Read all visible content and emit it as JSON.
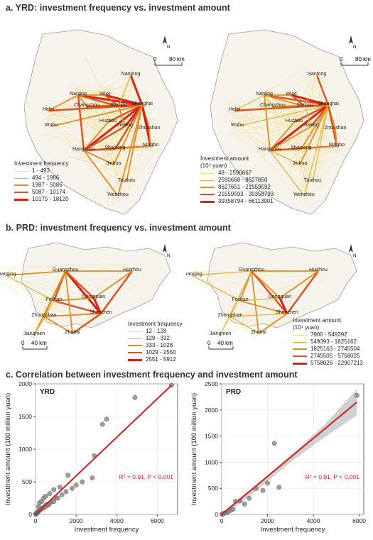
{
  "sections": {
    "a_title": "a. YRD: investment frequency vs. investment amount",
    "b_title": "b. PRD: investment frequency vs. investment amount",
    "c_title": "c. Correlation between investment frequency and investment amount"
  },
  "yrd": {
    "cities": [
      "Nantong",
      "Nanjing",
      "Wuxi",
      "Changzhou",
      "Suzhou",
      "Shanghai",
      "Hefei",
      "Huzhou",
      "Jiaxing",
      "Zhoushan",
      "Wuhu",
      "Hangzhou",
      "Shaoxing",
      "Ningbo",
      "Jinhua",
      "Taizhou",
      "Wenzhou"
    ],
    "scale": {
      "zero": "0",
      "max": "80 km"
    },
    "north": "N",
    "freq_legend": {
      "title": "Investment frequency",
      "classes": [
        "1 - 493",
        "494 - 1986",
        "1987 - 5086",
        "5087 - 10174",
        "10175 - 18120"
      ]
    },
    "amount_legend": {
      "title": "Investment amount",
      "unit": "(10⁴ yuan)",
      "classes": [
        "48 - 2590667",
        "2590668 - 8627650",
        "8627651 - 21559592",
        "21559593 - 39358793",
        "39358794 - 66113901"
      ]
    }
  },
  "prd": {
    "cities": [
      "Zhaoqing",
      "Guangzhou",
      "Huizhou",
      "Foshan",
      "Dongguan",
      "Zhongshan",
      "Shenzhen",
      "Jiangmen",
      "Zhuhai"
    ],
    "scale": {
      "zero": "0",
      "max": "40 km"
    },
    "north": "N",
    "freq_legend": {
      "title": "Investment frequency",
      "classes": [
        "12 - 128",
        "129 - 332",
        "333 - 1028",
        "1029 - 2550",
        "2551 - 5912"
      ]
    },
    "amount_legend": {
      "title": "Investment amount",
      "unit": "(10⁴ yuan)",
      "classes": [
        "7900 - 549392",
        "549393 - 1825162",
        "1825163 - 2745504",
        "2745505 - 5758025",
        "5758026 - 22907213"
      ]
    }
  },
  "colors": {
    "class1": "#f3dc8a",
    "class2": "#ddb12e",
    "class3": "#e08b23",
    "class4": "#e0501f",
    "class5": "#d62318",
    "fit_line": "#d21f1f",
    "point": "#8c8c8c",
    "ci_band": "#bdbdbd",
    "annotation": "#d21f1f"
  },
  "chart_data": [
    {
      "type": "scatter",
      "title": "YRD",
      "xlabel": "Investment frequency",
      "ylabel": "Investment amount (100 million yuan)",
      "xlim": [
        0,
        7000
      ],
      "ylim": [
        0,
        2000
      ],
      "xticks": [
        0,
        2000,
        4000,
        6000
      ],
      "yticks": [
        0,
        500,
        1000,
        1500,
        2000
      ],
      "grid": true,
      "annotation": "R² = 0.91, P < 0.001",
      "fit": {
        "x": [
          0,
          6700
        ],
        "y": [
          0,
          1980
        ]
      },
      "points": {
        "x": [
          10,
          20,
          30,
          40,
          50,
          60,
          80,
          100,
          120,
          150,
          180,
          200,
          220,
          250,
          280,
          300,
          350,
          400,
          450,
          500,
          550,
          600,
          650,
          700,
          800,
          900,
          1000,
          1100,
          1300,
          1500,
          1800,
          2000,
          2300,
          2800,
          2900,
          3300,
          3500,
          4900,
          6700,
          150,
          200,
          300,
          400,
          500,
          700,
          900,
          1200,
          1600
        ],
        "y": [
          5,
          8,
          10,
          15,
          20,
          25,
          30,
          30,
          40,
          50,
          60,
          60,
          70,
          80,
          80,
          90,
          100,
          100,
          120,
          140,
          130,
          160,
          150,
          170,
          200,
          200,
          260,
          250,
          300,
          350,
          400,
          450,
          500,
          560,
          900,
          1380,
          1460,
          1790,
          1980,
          120,
          180,
          200,
          250,
          280,
          320,
          380,
          420,
          600
        ]
      }
    },
    {
      "type": "scatter",
      "title": "PRD",
      "xlabel": "Investment frequency",
      "ylabel": "Investment amount (100 million yuan)",
      "xlim": [
        0,
        6200
      ],
      "ylim": [
        0,
        2500
      ],
      "xticks": [
        0,
        2000,
        4000,
        6000
      ],
      "yticks": [
        0,
        500,
        1000,
        1500,
        2000,
        2500
      ],
      "grid": true,
      "annotation": "R² = 0.91, P < 0.001",
      "fit": {
        "x": [
          0,
          5900
        ],
        "y": [
          -30,
          2150
        ]
      },
      "ci": {
        "x": [
          0,
          1500,
          3000,
          4500,
          5900
        ],
        "lower": [
          -90,
          450,
          1000,
          1480,
          1900
        ],
        "upper": [
          30,
          560,
          1130,
          1720,
          2400
        ]
      },
      "points": {
        "x": [
          20,
          50,
          80,
          100,
          150,
          200,
          250,
          300,
          400,
          500,
          600,
          800,
          1000,
          1200,
          1500,
          1800,
          2000,
          2300,
          2500,
          5900
        ],
        "y": [
          5,
          10,
          15,
          20,
          30,
          40,
          50,
          60,
          80,
          100,
          250,
          260,
          200,
          310,
          500,
          460,
          600,
          1360,
          520,
          2280
        ]
      }
    }
  ]
}
